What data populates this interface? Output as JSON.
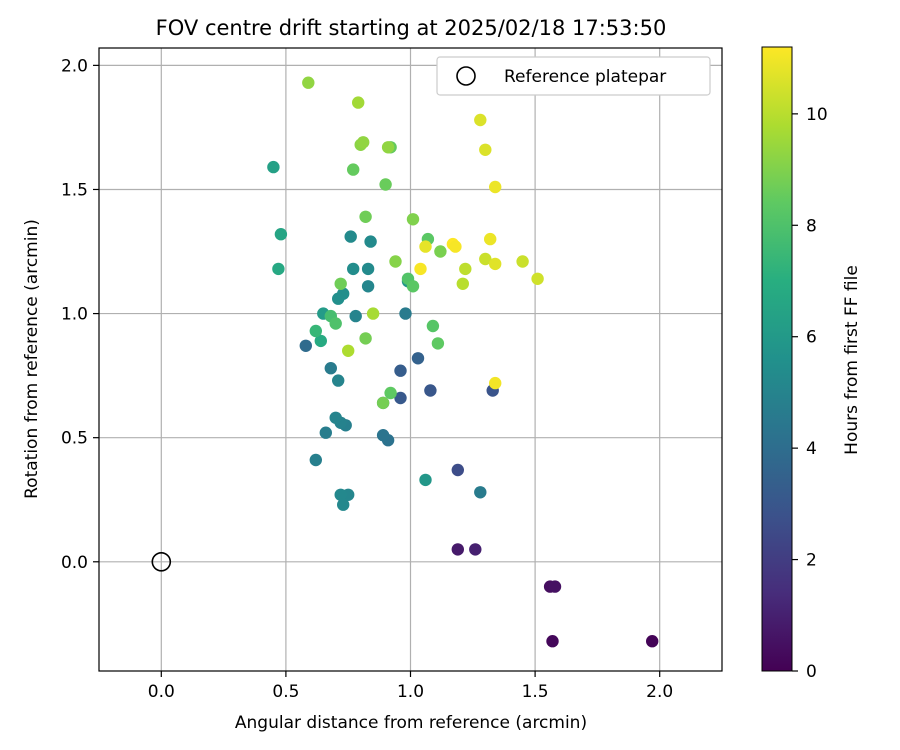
{
  "chart_data": {
    "type": "scatter",
    "title": "FOV centre drift starting at 2025/02/18 17:53:50",
    "xlabel": "Angular distance from reference (arcmin)",
    "ylabel": "Rotation from reference (arcmin)",
    "xlim": [
      -0.25,
      2.25
    ],
    "ylim": [
      -0.44,
      2.07
    ],
    "xticks": [
      0.0,
      0.5,
      1.0,
      1.5,
      2.0
    ],
    "xtick_labels": [
      "0.0",
      "0.5",
      "1.0",
      "1.5",
      "2.0"
    ],
    "yticks": [
      0.0,
      0.5,
      1.0,
      1.5,
      2.0
    ],
    "ytick_labels": [
      "0.0",
      "0.5",
      "1.0",
      "1.5",
      "2.0"
    ],
    "grid": true,
    "legend": {
      "position": "top-right",
      "entries": [
        "Reference platepar"
      ]
    },
    "colormap": "viridis",
    "colorbar": {
      "label": "Hours from first FF file",
      "min": 0,
      "max": 11.2,
      "ticks": [
        0,
        2,
        4,
        6,
        8,
        10
      ],
      "tick_labels": [
        "0",
        "2",
        "4",
        "6",
        "8",
        "10"
      ]
    },
    "reference_point": {
      "x": 0.0,
      "y": 0.0
    },
    "points": [
      {
        "x": 1.97,
        "y": -0.32,
        "h": 0.1
      },
      {
        "x": 1.57,
        "y": -0.32,
        "h": 0.2
      },
      {
        "x": 1.56,
        "y": -0.1,
        "h": 0.4
      },
      {
        "x": 1.58,
        "y": -0.1,
        "h": 0.5
      },
      {
        "x": 1.19,
        "y": 0.05,
        "h": 0.8
      },
      {
        "x": 1.26,
        "y": 0.05,
        "h": 1.0
      },
      {
        "x": 1.19,
        "y": 0.37,
        "h": 2.6
      },
      {
        "x": 1.33,
        "y": 0.69,
        "h": 2.9
      },
      {
        "x": 1.08,
        "y": 0.69,
        "h": 3.0
      },
      {
        "x": 0.96,
        "y": 0.66,
        "h": 3.1
      },
      {
        "x": 0.96,
        "y": 0.77,
        "h": 3.3
      },
      {
        "x": 1.03,
        "y": 0.82,
        "h": 3.5
      },
      {
        "x": 0.58,
        "y": 0.87,
        "h": 3.9
      },
      {
        "x": 0.91,
        "y": 0.49,
        "h": 4.2
      },
      {
        "x": 0.89,
        "y": 0.51,
        "h": 4.3
      },
      {
        "x": 0.89,
        "y": 0.64,
        "h": 4.4
      },
      {
        "x": 1.28,
        "y": 0.28,
        "h": 4.6
      },
      {
        "x": 0.98,
        "y": 1.0,
        "h": 4.6
      },
      {
        "x": 0.68,
        "y": 0.78,
        "h": 4.6
      },
      {
        "x": 0.66,
        "y": 0.52,
        "h": 4.7
      },
      {
        "x": 0.62,
        "y": 0.41,
        "h": 4.8
      },
      {
        "x": 0.74,
        "y": 0.55,
        "h": 4.8
      },
      {
        "x": 0.72,
        "y": 0.56,
        "h": 4.9
      },
      {
        "x": 0.7,
        "y": 0.58,
        "h": 5.0
      },
      {
        "x": 0.71,
        "y": 0.73,
        "h": 5.0
      },
      {
        "x": 0.78,
        "y": 0.99,
        "h": 5.0
      },
      {
        "x": 0.83,
        "y": 1.11,
        "h": 5.1
      },
      {
        "x": 0.75,
        "y": 0.27,
        "h": 5.1
      },
      {
        "x": 0.72,
        "y": 0.27,
        "h": 5.2
      },
      {
        "x": 0.73,
        "y": 0.23,
        "h": 5.2
      },
      {
        "x": 0.84,
        "y": 1.29,
        "h": 5.3
      },
      {
        "x": 0.76,
        "y": 1.31,
        "h": 5.3
      },
      {
        "x": 0.83,
        "y": 1.18,
        "h": 5.3
      },
      {
        "x": 0.77,
        "y": 1.18,
        "h": 5.4
      },
      {
        "x": 0.73,
        "y": 1.08,
        "h": 5.5
      },
      {
        "x": 0.71,
        "y": 1.06,
        "h": 5.5
      },
      {
        "x": 0.99,
        "y": 1.13,
        "h": 5.8
      },
      {
        "x": 1.06,
        "y": 0.33,
        "h": 5.9
      },
      {
        "x": 0.65,
        "y": 1.0,
        "h": 6.1
      },
      {
        "x": 0.45,
        "y": 1.59,
        "h": 6.3
      },
      {
        "x": 0.48,
        "y": 1.32,
        "h": 6.5
      },
      {
        "x": 0.47,
        "y": 1.18,
        "h": 6.7
      },
      {
        "x": 0.64,
        "y": 0.89,
        "h": 6.8
      },
      {
        "x": 0.62,
        "y": 0.93,
        "h": 7.4
      },
      {
        "x": 0.68,
        "y": 0.99,
        "h": 7.8
      },
      {
        "x": 0.7,
        "y": 0.96,
        "h": 8.0
      },
      {
        "x": 0.99,
        "y": 1.14,
        "h": 8.1
      },
      {
        "x": 1.01,
        "y": 1.11,
        "h": 8.3
      },
      {
        "x": 1.07,
        "y": 1.3,
        "h": 8.3
      },
      {
        "x": 1.09,
        "y": 0.95,
        "h": 8.2
      },
      {
        "x": 1.11,
        "y": 0.88,
        "h": 8.4
      },
      {
        "x": 0.92,
        "y": 0.68,
        "h": 8.4
      },
      {
        "x": 0.77,
        "y": 1.58,
        "h": 8.5
      },
      {
        "x": 0.92,
        "y": 1.67,
        "h": 8.5
      },
      {
        "x": 0.9,
        "y": 1.52,
        "h": 8.6
      },
      {
        "x": 0.82,
        "y": 1.39,
        "h": 8.7
      },
      {
        "x": 0.72,
        "y": 1.12,
        "h": 8.7
      },
      {
        "x": 0.89,
        "y": 0.64,
        "h": 8.8
      },
      {
        "x": 0.82,
        "y": 0.9,
        "h": 8.8
      },
      {
        "x": 1.12,
        "y": 1.25,
        "h": 8.9
      },
      {
        "x": 1.01,
        "y": 1.38,
        "h": 9.0
      },
      {
        "x": 0.94,
        "y": 1.21,
        "h": 9.1
      },
      {
        "x": 0.8,
        "y": 1.68,
        "h": 9.2
      },
      {
        "x": 0.81,
        "y": 1.69,
        "h": 9.3
      },
      {
        "x": 0.91,
        "y": 1.67,
        "h": 9.3
      },
      {
        "x": 0.59,
        "y": 1.93,
        "h": 9.3
      },
      {
        "x": 0.79,
        "y": 1.85,
        "h": 9.6
      },
      {
        "x": 0.85,
        "y": 1.0,
        "h": 9.7
      },
      {
        "x": 0.75,
        "y": 0.85,
        "h": 9.8
      },
      {
        "x": 1.21,
        "y": 1.12,
        "h": 10.0
      },
      {
        "x": 1.22,
        "y": 1.18,
        "h": 10.1
      },
      {
        "x": 1.3,
        "y": 1.22,
        "h": 10.3
      },
      {
        "x": 1.45,
        "y": 1.21,
        "h": 10.3
      },
      {
        "x": 1.51,
        "y": 1.14,
        "h": 10.4
      },
      {
        "x": 1.3,
        "y": 1.66,
        "h": 10.6
      },
      {
        "x": 1.28,
        "y": 1.78,
        "h": 10.6
      },
      {
        "x": 1.34,
        "y": 1.2,
        "h": 10.7
      },
      {
        "x": 1.06,
        "y": 1.27,
        "h": 10.8
      },
      {
        "x": 1.32,
        "y": 1.3,
        "h": 10.9
      },
      {
        "x": 1.34,
        "y": 1.51,
        "h": 10.9
      },
      {
        "x": 1.34,
        "y": 0.72,
        "h": 11.0
      },
      {
        "x": 1.04,
        "y": 1.18,
        "h": 11.1
      },
      {
        "x": 1.17,
        "y": 1.28,
        "h": 11.2
      },
      {
        "x": 1.18,
        "y": 1.27,
        "h": 11.1
      }
    ]
  }
}
